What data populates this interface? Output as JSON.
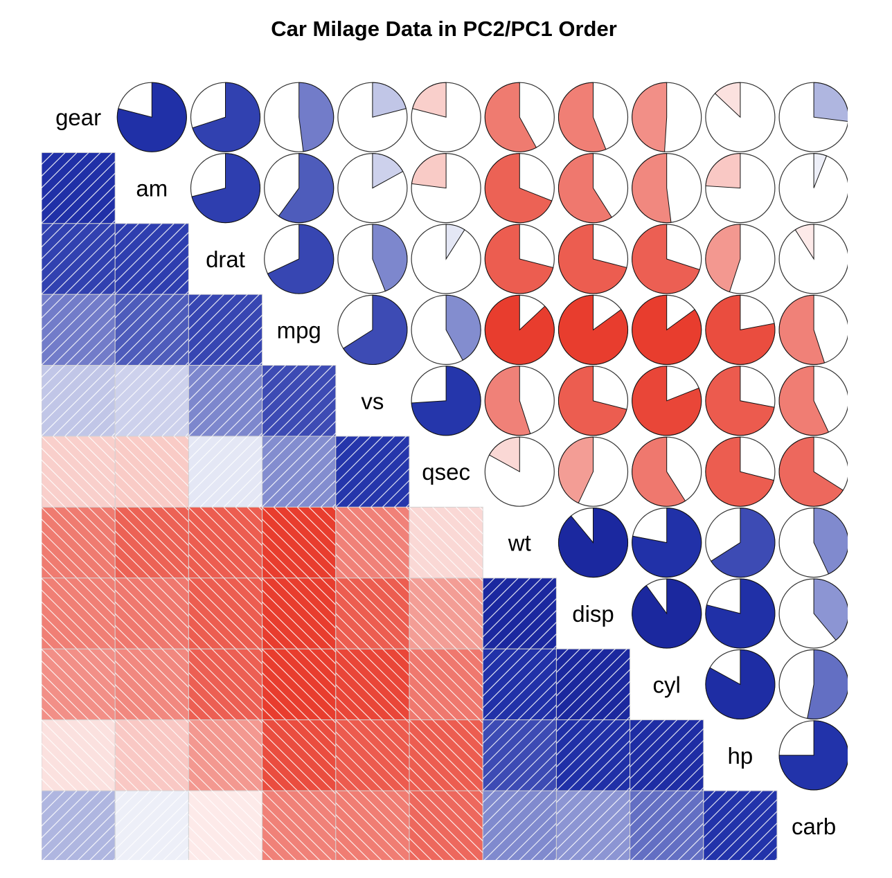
{
  "chart_data": {
    "type": "heatmap",
    "title": "Car Milage Data in PC2/PC1 Order",
    "variables": [
      "gear",
      "am",
      "drat",
      "mpg",
      "vs",
      "qsec",
      "wt",
      "disp",
      "cyl",
      "hp",
      "carb"
    ],
    "lower_panel": "shade",
    "upper_panel": "pie",
    "diagonal": "variable names",
    "scale": [
      -1,
      1
    ],
    "colors": {
      "positive": "#2233AA",
      "negative": "#E83D2E",
      "strong_positive": "#162096",
      "neutral": "#FFFFFF",
      "outline": "#000000",
      "grid": "#D3D3D3"
    },
    "correlations": [
      [
        1.0,
        0.79,
        0.7,
        0.48,
        0.21,
        -0.21,
        -0.58,
        -0.56,
        -0.49,
        -0.13,
        0.27
      ],
      [
        0.79,
        1.0,
        0.71,
        0.6,
        0.17,
        -0.23,
        -0.69,
        -0.59,
        -0.52,
        -0.24,
        0.06
      ],
      [
        0.7,
        0.71,
        1.0,
        0.68,
        0.44,
        0.09,
        -0.71,
        -0.71,
        -0.7,
        -0.45,
        -0.09
      ],
      [
        0.48,
        0.6,
        0.68,
        1.0,
        0.66,
        0.42,
        -0.87,
        -0.85,
        -0.85,
        -0.78,
        -0.55
      ],
      [
        0.21,
        0.17,
        0.44,
        0.66,
        1.0,
        0.74,
        -0.55,
        -0.71,
        -0.81,
        -0.72,
        -0.57
      ],
      [
        -0.21,
        -0.23,
        0.09,
        0.42,
        0.74,
        1.0,
        -0.17,
        -0.43,
        -0.59,
        -0.71,
        -0.66
      ],
      [
        -0.58,
        -0.69,
        -0.71,
        -0.87,
        -0.55,
        -0.17,
        1.0,
        0.89,
        0.78,
        0.66,
        0.43
      ],
      [
        -0.56,
        -0.59,
        -0.71,
        -0.85,
        -0.71,
        -0.43,
        0.89,
        1.0,
        0.9,
        0.79,
        0.39
      ],
      [
        -0.49,
        -0.52,
        -0.7,
        -0.85,
        -0.81,
        -0.59,
        0.78,
        0.9,
        1.0,
        0.83,
        0.53
      ],
      [
        -0.13,
        -0.24,
        -0.45,
        -0.78,
        -0.72,
        -0.71,
        0.66,
        0.79,
        0.83,
        1.0,
        0.75
      ],
      [
        0.27,
        0.06,
        -0.09,
        -0.55,
        -0.57,
        -0.66,
        0.43,
        0.39,
        0.53,
        0.75,
        1.0
      ]
    ]
  }
}
